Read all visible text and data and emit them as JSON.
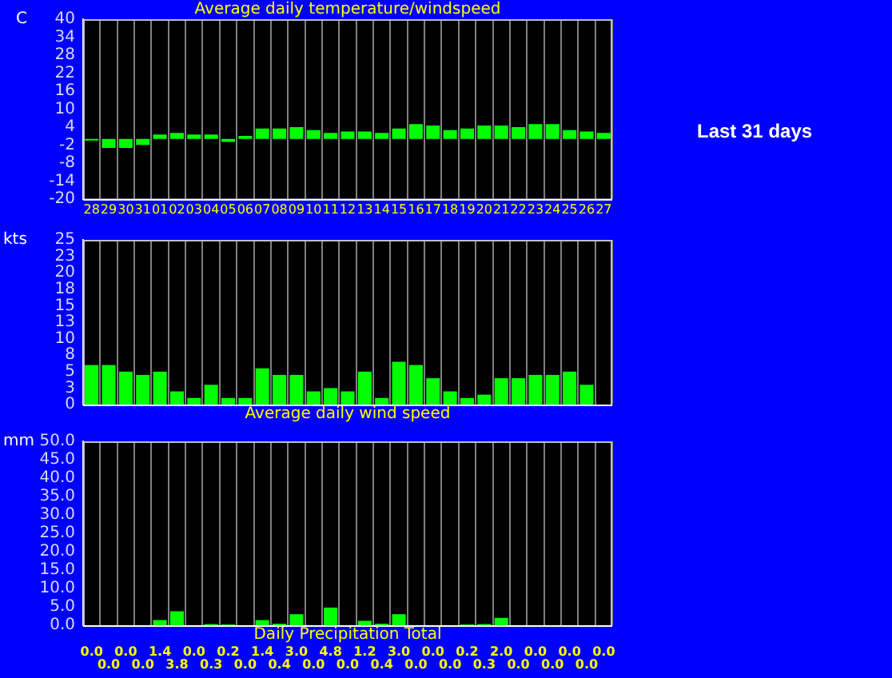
{
  "chart_data": [
    {
      "type": "bar",
      "title": "Average daily temperature/windspeed",
      "ylabel": "C",
      "categories": [
        "28",
        "29",
        "30",
        "31",
        "01",
        "02",
        "03",
        "04",
        "05",
        "06",
        "07",
        "08",
        "09",
        "10",
        "11",
        "12",
        "13",
        "14",
        "15",
        "16",
        "17",
        "18",
        "19",
        "20",
        "21",
        "22",
        "23",
        "24",
        "25",
        "26",
        "27"
      ],
      "values": [
        -0.5,
        -3,
        -3,
        -2,
        1.5,
        2,
        1.5,
        1.5,
        -1,
        1,
        3.5,
        3.5,
        4,
        3,
        2,
        2.5,
        2.5,
        2,
        3.5,
        5,
        4.5,
        3,
        3.5,
        4.5,
        4.5,
        4,
        5,
        5,
        3,
        2.5,
        2
      ],
      "color": "#00ff00",
      "ylim": [
        -20,
        40
      ],
      "yticks": [
        -20,
        -14,
        -8,
        -2,
        4,
        10,
        16,
        22,
        28,
        34,
        40
      ],
      "grid": "x",
      "annotations": [
        "Last 31 days"
      ]
    },
    {
      "type": "bar",
      "title": "Average daily wind speed",
      "ylabel": "kts",
      "categories": [
        "28",
        "29",
        "30",
        "31",
        "01",
        "02",
        "03",
        "04",
        "05",
        "06",
        "07",
        "08",
        "09",
        "10",
        "11",
        "12",
        "13",
        "14",
        "15",
        "16",
        "17",
        "18",
        "19",
        "20",
        "21",
        "22",
        "23",
        "24",
        "25",
        "26",
        "27"
      ],
      "values": [
        6,
        6,
        5,
        4.5,
        5,
        2,
        1,
        3,
        1,
        1,
        5.5,
        4.5,
        4.5,
        2,
        2.5,
        2,
        5,
        1,
        6.5,
        6,
        4,
        2,
        1,
        1.5,
        4,
        4,
        4.5,
        4.5,
        5,
        3,
        0
      ],
      "color": "#00ff00",
      "ylim": [
        0,
        25
      ],
      "yticks": [
        0,
        {
          "value": 2.5,
          "label": "3"
        },
        5,
        {
          "value": 7.5,
          "label": "8"
        },
        10,
        {
          "value": 12.5,
          "label": "13"
        },
        15,
        {
          "value": 17.5,
          "label": "18"
        },
        20,
        {
          "value": 22.5,
          "label": "23"
        },
        25
      ],
      "grid": "x",
      "tick_labels": "y"
    },
    {
      "type": "bar",
      "title": "Daily Precipitation Total",
      "ylabel": "mm",
      "categories": [
        "28",
        "29",
        "30",
        "31",
        "01",
        "02",
        "03",
        "04",
        "05",
        "06",
        "07",
        "08",
        "09",
        "10",
        "11",
        "12",
        "13",
        "14",
        "15",
        "16",
        "17",
        "18",
        "19",
        "20",
        "21",
        "22",
        "23",
        "24",
        "25",
        "26",
        "27"
      ],
      "values": [
        0,
        0,
        0,
        0,
        1.4,
        3.8,
        0,
        0.3,
        0.2,
        0,
        1.4,
        0.4,
        3.0,
        0,
        4.8,
        0,
        1.2,
        0.4,
        3.0,
        0,
        0,
        0,
        0.2,
        0.3,
        2.0,
        0,
        0,
        0,
        0,
        0,
        0
      ],
      "value_labels": [
        "0.0",
        "0.0",
        "0.0",
        "0.0",
        "1.4",
        "3.8",
        "0.0",
        "0.3",
        "0.2",
        "0.0",
        "1.4",
        "0.4",
        "3.0",
        "0.0",
        "4.8",
        "0.0",
        "1.2",
        "0.4",
        "3.0",
        "0.0",
        "0.0",
        "0.0",
        "0.2",
        "0.3",
        "2.0",
        "0.0",
        "0.0",
        "0.0",
        "0.0",
        "0.0",
        "0.0"
      ],
      "color": "#00ff00",
      "ylim": [
        0,
        50
      ],
      "yticks": [
        {
          "value": 0,
          "label": "0.0"
        },
        {
          "value": 5,
          "label": "5.0"
        },
        {
          "value": 10,
          "label": "10.0"
        },
        {
          "value": 15,
          "label": "15.0"
        },
        {
          "value": 20,
          "label": "20.0"
        },
        {
          "value": 25,
          "label": "25.0"
        },
        {
          "value": 30,
          "label": "30.0"
        },
        {
          "value": 35,
          "label": "35.0"
        },
        {
          "value": 40,
          "label": "40.0"
        },
        {
          "value": 45,
          "label": "45.0"
        },
        {
          "value": 50,
          "label": "50.0"
        }
      ],
      "grid": "x",
      "tick_labels": "y"
    }
  ]
}
